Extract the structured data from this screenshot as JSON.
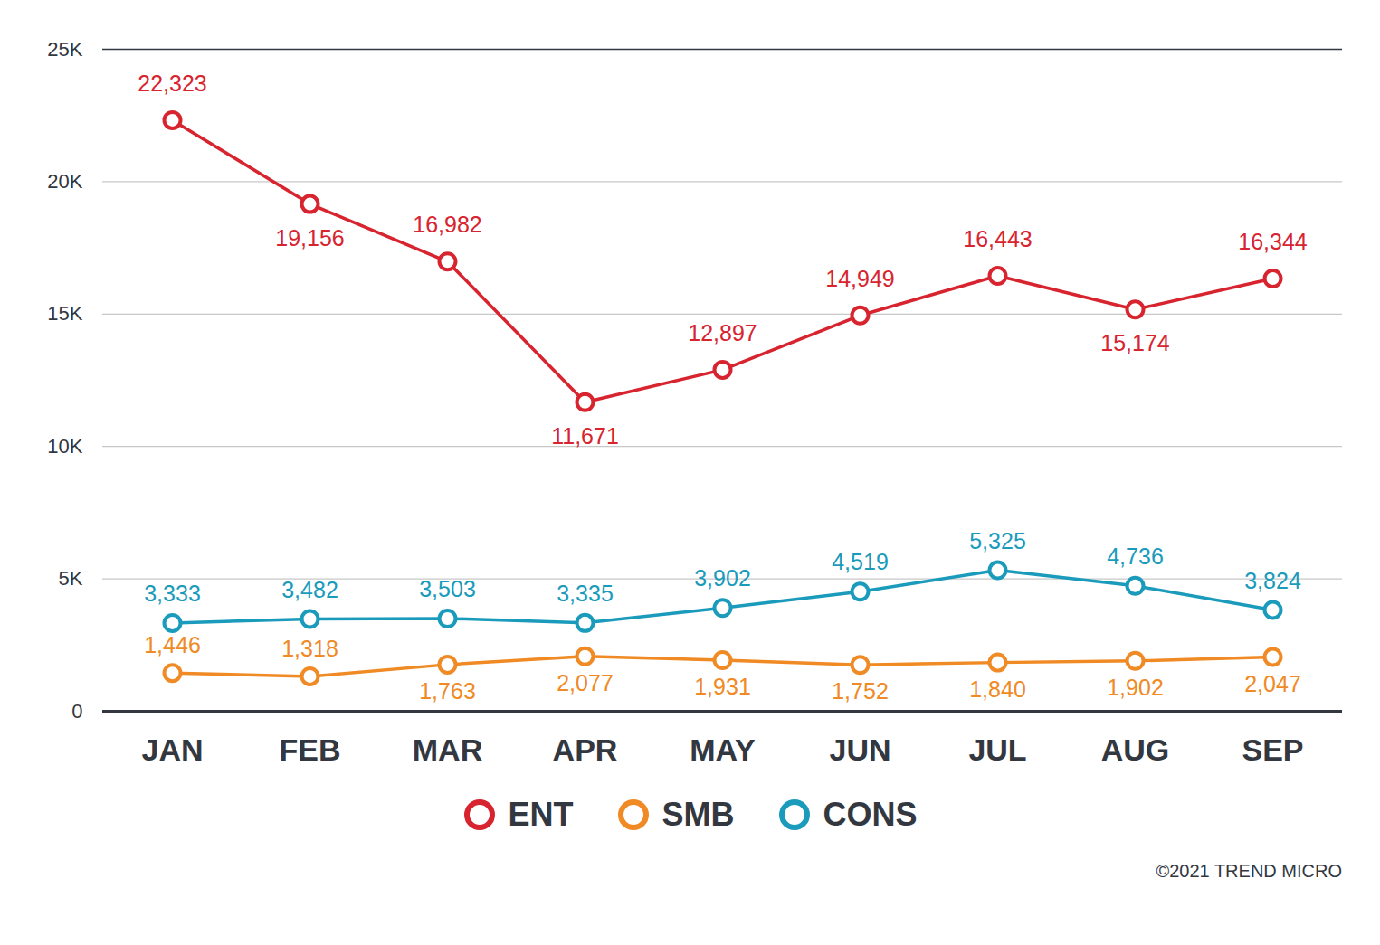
{
  "chart_data": {
    "type": "line",
    "categories": [
      "JAN",
      "FEB",
      "MAR",
      "APR",
      "MAY",
      "JUN",
      "JUL",
      "AUG",
      "SEP"
    ],
    "series": [
      {
        "name": "ENT",
        "color": "#d7242f",
        "values": [
          22323,
          19156,
          16982,
          11671,
          12897,
          14949,
          16443,
          15174,
          16344
        ],
        "value_labels": [
          "22,323",
          "19,156",
          "16,982",
          "11,671",
          "12,897",
          "14,949",
          "16,443",
          "15,174",
          "16,344"
        ]
      },
      {
        "name": "SMB",
        "color": "#f08a24",
        "values": [
          1446,
          1318,
          1763,
          2077,
          1931,
          1752,
          1840,
          1902,
          2047
        ],
        "value_labels": [
          "1,446",
          "1,318",
          "1,763",
          "2,077",
          "1,931",
          "1,752",
          "1,840",
          "1,902",
          "2,047"
        ]
      },
      {
        "name": "CONS",
        "color": "#1a9bbb",
        "values": [
          3333,
          3482,
          3503,
          3335,
          3902,
          4519,
          5325,
          4736,
          3824
        ],
        "value_labels": [
          "3,333",
          "3,482",
          "3,503",
          "3,335",
          "3,902",
          "4,519",
          "5,325",
          "4,736",
          "3,824"
        ]
      }
    ],
    "ylim": [
      0,
      25000
    ],
    "yticks": [
      0,
      {
        "value": 5000,
        "label": "5K"
      },
      {
        "value": 10000,
        "label": "10K"
      },
      {
        "value": 15000,
        "label": "15K"
      },
      {
        "value": 20000,
        "label": "20K"
      },
      {
        "value": 25000,
        "label": "25K"
      }
    ],
    "grid": true,
    "data_labels": true,
    "legend": "bottom",
    "marker": "circle",
    "line_style": "solid",
    "caption": "©2021 TREND MICRO"
  }
}
